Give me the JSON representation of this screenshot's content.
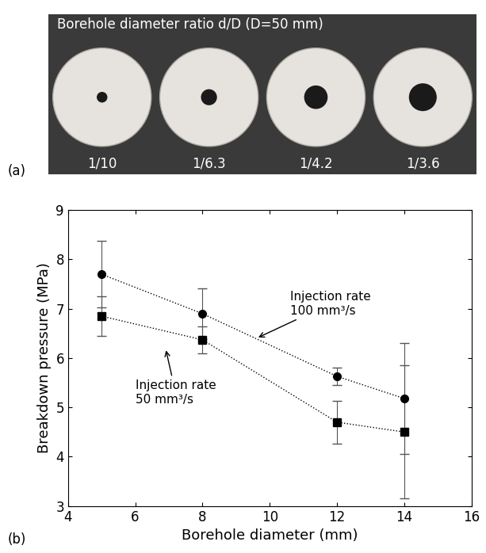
{
  "photo": {
    "panel_label": "(a)",
    "title": "Borehole diameter ratio d/D (D=50 mm)",
    "ratios": [
      "1/10",
      "1/6.3",
      "1/4.2",
      "1/3.6"
    ]
  },
  "chart_data": {
    "type": "line",
    "panel_label": "(b)",
    "x_label": "Borehole diameter (mm)",
    "y_label": "Breakdown pressure (MPa)",
    "x": [
      5,
      8,
      12,
      14
    ],
    "series": [
      {
        "name": "Injection rate\n100 mm³/s",
        "color": "#000000",
        "marker": "circle",
        "line_style": "dotted",
        "values": [
          7.7,
          6.9,
          5.63,
          5.18
        ],
        "errors": [
          0.68,
          0.52,
          0.17,
          1.13
        ]
      },
      {
        "name": "Injection rate\n50 mm³/s",
        "color": "#000000",
        "marker": "square",
        "line_style": "dotted",
        "values": [
          6.85,
          6.37,
          4.7,
          4.5
        ],
        "errors": [
          0.4,
          0.27,
          0.43,
          1.35
        ]
      }
    ],
    "xlim": [
      4,
      16
    ],
    "xticks": [
      4,
      6,
      8,
      10,
      12,
      14,
      16
    ],
    "ylim": [
      3,
      9
    ],
    "yticks": [
      3,
      4,
      5,
      6,
      7,
      8,
      9
    ],
    "grid": false
  }
}
